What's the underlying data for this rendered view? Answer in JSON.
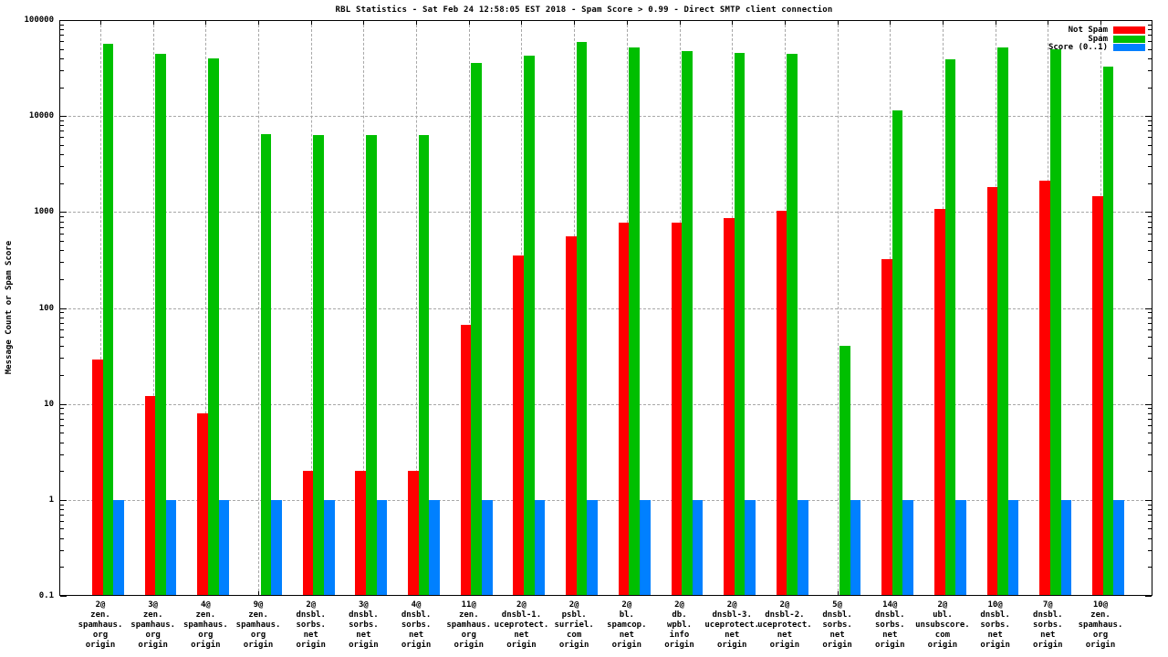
{
  "chart_data": {
    "type": "bar",
    "title": "RBL Statistics - Sat Feb 24 12:58:05 EST 2018 - Spam Score > 0.99 - Direct SMTP client connection",
    "ylabel": "Message Count or Spam Score",
    "xlabel": "",
    "y_scale": "log",
    "ylim": [
      0.1,
      100000
    ],
    "grid": true,
    "legend_position": "top-right-inside",
    "y_ticks": [
      {
        "label": "100000",
        "value": 100000
      },
      {
        "label": "10000",
        "value": 10000
      },
      {
        "label": "1000",
        "value": 1000
      },
      {
        "label": "100",
        "value": 100
      },
      {
        "label": "10",
        "value": 10
      },
      {
        "label": "1",
        "value": 1
      },
      {
        "label": "0.1",
        "value": 0.1
      }
    ],
    "categories": [
      [
        "2@",
        "zen.",
        "spamhaus.",
        "org",
        "origin"
      ],
      [
        "3@",
        "zen.",
        "spamhaus.",
        "org",
        "origin"
      ],
      [
        "4@",
        "zen.",
        "spamhaus.",
        "org",
        "origin"
      ],
      [
        "9@",
        "zen.",
        "spamhaus.",
        "org",
        "origin"
      ],
      [
        "2@",
        "dnsbl.",
        "sorbs.",
        "net",
        "origin"
      ],
      [
        "3@",
        "dnsbl.",
        "sorbs.",
        "net",
        "origin"
      ],
      [
        "4@",
        "dnsbl.",
        "sorbs.",
        "net",
        "origin"
      ],
      [
        "11@",
        "zen.",
        "spamhaus.",
        "org",
        "origin"
      ],
      [
        "2@",
        "dnsbl-1.",
        "uceprotect.",
        "net",
        "origin"
      ],
      [
        "2@",
        "psbl.",
        "surriel.",
        "com",
        "origin"
      ],
      [
        "2@",
        "bl.",
        "spamcop.",
        "net",
        "origin"
      ],
      [
        "2@",
        "db.",
        "wpbl.",
        "info",
        "origin"
      ],
      [
        "2@",
        "dnsbl-3.",
        "uceprotect.",
        "net",
        "origin"
      ],
      [
        "2@",
        "dnsbl-2.",
        "uceprotect.",
        "net",
        "origin"
      ],
      [
        "5@",
        "dnsbl.",
        "sorbs.",
        "net",
        "origin"
      ],
      [
        "14@",
        "dnsbl.",
        "sorbs.",
        "net",
        "origin"
      ],
      [
        "2@",
        "ubl.",
        "unsubscore.",
        "com",
        "origin"
      ],
      [
        "10@",
        "dnsbl.",
        "sorbs.",
        "net",
        "origin"
      ],
      [
        "7@",
        "dnsbl.",
        "sorbs.",
        "net",
        "origin"
      ],
      [
        "10@",
        "zen.",
        "spamhaus.",
        "org",
        "origin"
      ]
    ],
    "series": [
      {
        "name": "Not Spam",
        "color": "#ff0000",
        "values": [
          29,
          12,
          8,
          null,
          2,
          2,
          2,
          67,
          350,
          560,
          780,
          770,
          870,
          1030,
          null,
          320,
          1080,
          1800,
          2100,
          1450
        ]
      },
      {
        "name": "Spam",
        "color": "#00bf00",
        "values": [
          57000,
          44000,
          40000,
          6500,
          6400,
          6400,
          6400,
          36000,
          43000,
          59000,
          52000,
          47000,
          45000,
          44000,
          40,
          11500,
          39000,
          52000,
          50000,
          33000
        ]
      },
      {
        "name": "Score (0..1)",
        "color": "#0080ff",
        "values": [
          1,
          1,
          1,
          1,
          1,
          1,
          1,
          1,
          1,
          1,
          1,
          1,
          1,
          1,
          1,
          1,
          1,
          1,
          1,
          1
        ]
      }
    ],
    "colors": {
      "background": "#ffffff",
      "border": "#000000",
      "grid": "#a8a8a8",
      "text": "#000000"
    }
  }
}
